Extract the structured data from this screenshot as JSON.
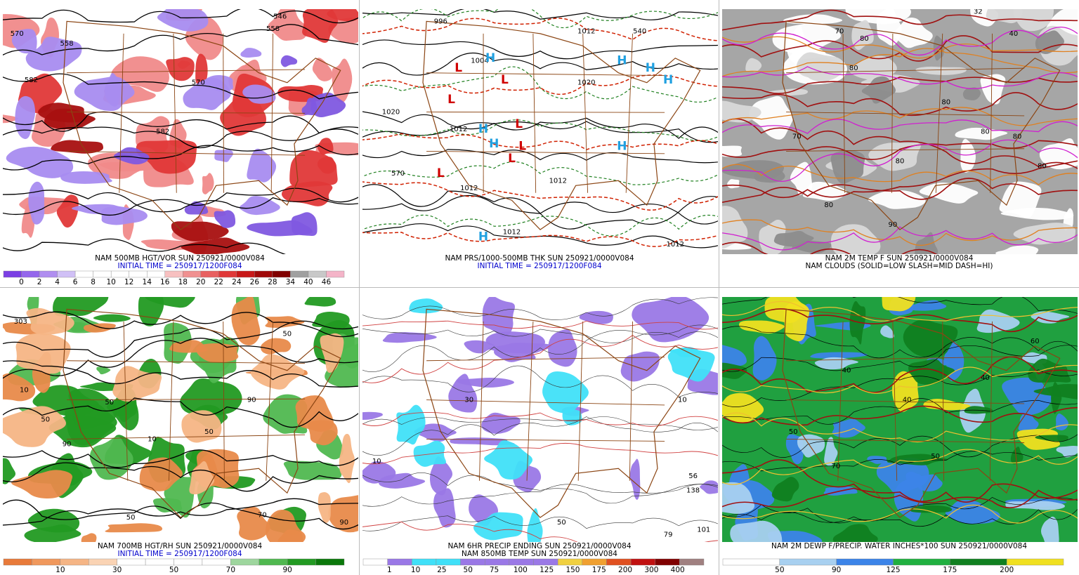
{
  "panels": [
    {
      "caption": [
        "NAM 500MB HGT/VOR SUN 250921/0000V084",
        "INITIAL TIME = 250917/1200F084"
      ],
      "caption_colors": [
        "#000000",
        "#0000cc"
      ],
      "colorbar": {
        "colors": [
          "#7b3fe4",
          "#9466ec",
          "#b08ef0",
          "#d0c0f6",
          "#ffffff",
          "#ffffff",
          "#ffffff",
          "#ffffff",
          "#ffffff",
          "#f7c0c0",
          "#f09090",
          "#e86060",
          "#e03838",
          "#c81818",
          "#a00808",
          "#800000",
          "#a0a0a0",
          "#c8c8c8",
          "#f4b4c8"
        ],
        "labels": [
          "0",
          "2",
          "4",
          "6",
          "8",
          "10",
          "12",
          "14",
          "16",
          "18",
          "20",
          "22",
          "24",
          "26",
          "28",
          "34",
          "40",
          "46"
        ]
      },
      "map_labels": [
        "570",
        "558",
        "582",
        "546",
        "558",
        "582",
        "570"
      ]
    },
    {
      "caption": [
        "NAM PRS/1000-500MB THK SUN 250921/0000V084",
        "INITIAL TIME = 250917/1200F084"
      ],
      "caption_colors": [
        "#000000",
        "#0000cc"
      ],
      "map_labels": [
        "996",
        "1004",
        "1012",
        "1020",
        "1012",
        "570",
        "1012",
        "1012",
        "1012",
        "1020",
        "1012",
        "540",
        "L",
        "L",
        "L",
        "L",
        "L",
        "L",
        "L",
        "H",
        "H",
        "H",
        "H",
        "H",
        "H",
        "H",
        "H"
      ]
    },
    {
      "caption": [
        "NAM 2M TEMP F SUN 250921/0000V084",
        "NAM CLOUDS (SOLID=LOW SLASH=MID DASH=HI)"
      ],
      "caption_colors": [
        "#000000",
        "#000000"
      ],
      "map_labels": [
        "32",
        "40",
        "70",
        "80",
        "80",
        "70",
        "80",
        "80",
        "80",
        "80",
        "80",
        "90",
        "80"
      ]
    },
    {
      "caption": [
        "NAM 700MB HGT/RH SUN 250921/0000V084",
        "INITIAL TIME = 250917/1200F084"
      ],
      "caption_colors": [
        "#000000",
        "#0000cc"
      ],
      "colorbar": {
        "colors": [
          "#e87a3a",
          "#f0985c",
          "#f5b585",
          "#fad3b4",
          "#ffffff",
          "#ffffff",
          "#ffffff",
          "#ffffff",
          "#9ed69e",
          "#50b850",
          "#229a22",
          "#0a780a"
        ],
        "labels": [
          "10",
          "30",
          "50",
          "70",
          "90"
        ]
      },
      "map_labels": [
        "303",
        "10",
        "50",
        "90",
        "50",
        "10",
        "50",
        "90",
        "50",
        "70",
        "90",
        "50"
      ]
    },
    {
      "caption": [
        "NAM 6HR PRECIP ENDING SUN 250921/0000V084",
        "NAM 850MB TEMP SUN 250921/0000V084"
      ],
      "caption_colors": [
        "#000000",
        "#000000"
      ],
      "colorbar": {
        "colors": [
          "#ffffff",
          "#9a78e6",
          "#40e0f8",
          "#40e0f8",
          "#9a78e6",
          "#9a78e6",
          "#9a78e6",
          "#9a78e6",
          "#f0d040",
          "#f0a030",
          "#e05020",
          "#c01010",
          "#800000",
          "#a08080"
        ],
        "labels": [
          "1",
          "10",
          "25",
          "50",
          "75",
          "100",
          "125",
          "150",
          "175",
          "200",
          "300",
          "400"
        ]
      },
      "map_labels": [
        "10",
        "30",
        "10",
        "56",
        "138",
        "50",
        "79",
        "101"
      ]
    },
    {
      "caption": [
        "NAM 2M DEWP F/PRECIP. WATER INCHES*100 SUN 250921/0000V084"
      ],
      "caption_colors": [
        "#000000"
      ],
      "colorbar": {
        "colors": [
          "#ffffff",
          "#a8d0f0",
          "#3c84e8",
          "#20b040",
          "#108020",
          "#f0e020"
        ],
        "labels": [
          "50",
          "90",
          "125",
          "175",
          "200"
        ]
      },
      "map_labels": [
        "40",
        "40",
        "50",
        "60",
        "40",
        "50",
        "70"
      ]
    }
  ]
}
